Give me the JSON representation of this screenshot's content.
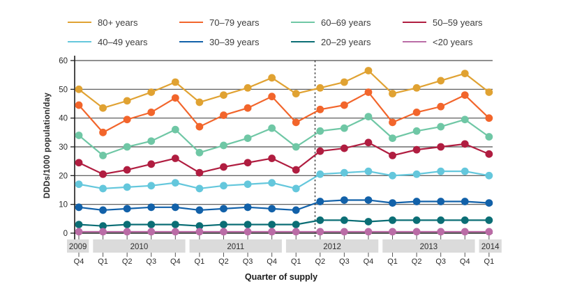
{
  "chart_data": {
    "type": "line",
    "title": "",
    "xlabel": "Quarter of supply",
    "ylabel": "DDDs/1000 population/day",
    "ylim": [
      0,
      60
    ],
    "yticks": [
      0,
      10,
      20,
      30,
      40,
      50,
      60
    ],
    "grid": true,
    "legend_position": "top",
    "x_labels": [
      "Q4",
      "Q1",
      "Q2",
      "Q3",
      "Q4",
      "Q1",
      "Q2",
      "Q3",
      "Q4",
      "Q1",
      "Q2",
      "Q3",
      "Q4",
      "Q1",
      "Q2",
      "Q3",
      "Q4",
      "Q1"
    ],
    "year_bands": [
      {
        "year": "2009",
        "quarters": 1
      },
      {
        "year": "2010",
        "quarters": 4
      },
      {
        "year": "2011",
        "quarters": 4
      },
      {
        "year": "2012",
        "quarters": 4
      },
      {
        "year": "2013",
        "quarters": 4
      },
      {
        "year": "2014",
        "quarters": 1
      }
    ],
    "intervention_line": {
      "after_index": 9,
      "description": "dashed vertical line between 2012 Q1 and 2012 Q2"
    },
    "series": [
      {
        "name": "80+ years",
        "color": "#E0A232",
        "values": [
          50,
          43.5,
          46,
          49,
          52.5,
          45.5,
          48,
          50.5,
          54,
          48.5,
          50.5,
          52.5,
          56.5,
          48.5,
          50.5,
          53,
          55.5,
          49
        ]
      },
      {
        "name": "70–79 years",
        "color": "#F2652B",
        "values": [
          44.5,
          35,
          39.5,
          42,
          47,
          37,
          41,
          43.5,
          47.5,
          38.5,
          43,
          44.5,
          49,
          38.5,
          42,
          44,
          48,
          40
        ]
      },
      {
        "name": "60–69 years",
        "color": "#6FC7A5",
        "values": [
          34,
          27,
          30,
          32,
          36,
          28,
          30.5,
          33,
          36.5,
          30,
          35.5,
          36.5,
          40.5,
          33,
          35.5,
          37,
          39.5,
          33.5
        ]
      },
      {
        "name": "50–59 years",
        "color": "#B01D40",
        "values": [
          24.5,
          20.5,
          22,
          24,
          26,
          21,
          23,
          24.5,
          26,
          22,
          28.5,
          29.5,
          31.5,
          27,
          29,
          30,
          31,
          27.5
        ]
      },
      {
        "name": "40–49 years",
        "color": "#64C7DC",
        "values": [
          17,
          15.5,
          16,
          16.5,
          17.5,
          15.5,
          16.5,
          17,
          17.5,
          15.5,
          20.5,
          21,
          21.5,
          20,
          20.5,
          21.5,
          21.5,
          20
        ]
      },
      {
        "name": "30–39 years",
        "color": "#1261A9",
        "values": [
          9,
          8,
          8.5,
          9,
          9,
          8,
          8.5,
          9,
          8.5,
          8,
          11,
          11.5,
          11.5,
          10.5,
          11,
          11,
          11,
          10.5
        ]
      },
      {
        "name": "20–29 years",
        "color": "#0B6E75",
        "values": [
          3,
          2.5,
          3,
          3,
          3,
          2.5,
          3,
          3,
          3,
          3,
          4.5,
          4.5,
          4,
          4.5,
          4.5,
          4.5,
          4.5,
          4.5
        ]
      },
      {
        "name": "<20 years",
        "color": "#BA6CA6",
        "values": [
          0.5,
          0.5,
          0.5,
          0.5,
          0.5,
          0.5,
          0.5,
          0.5,
          0.5,
          0.5,
          0.5,
          0.5,
          0.5,
          0.5,
          0.5,
          0.5,
          0.5,
          0.5
        ]
      }
    ]
  }
}
